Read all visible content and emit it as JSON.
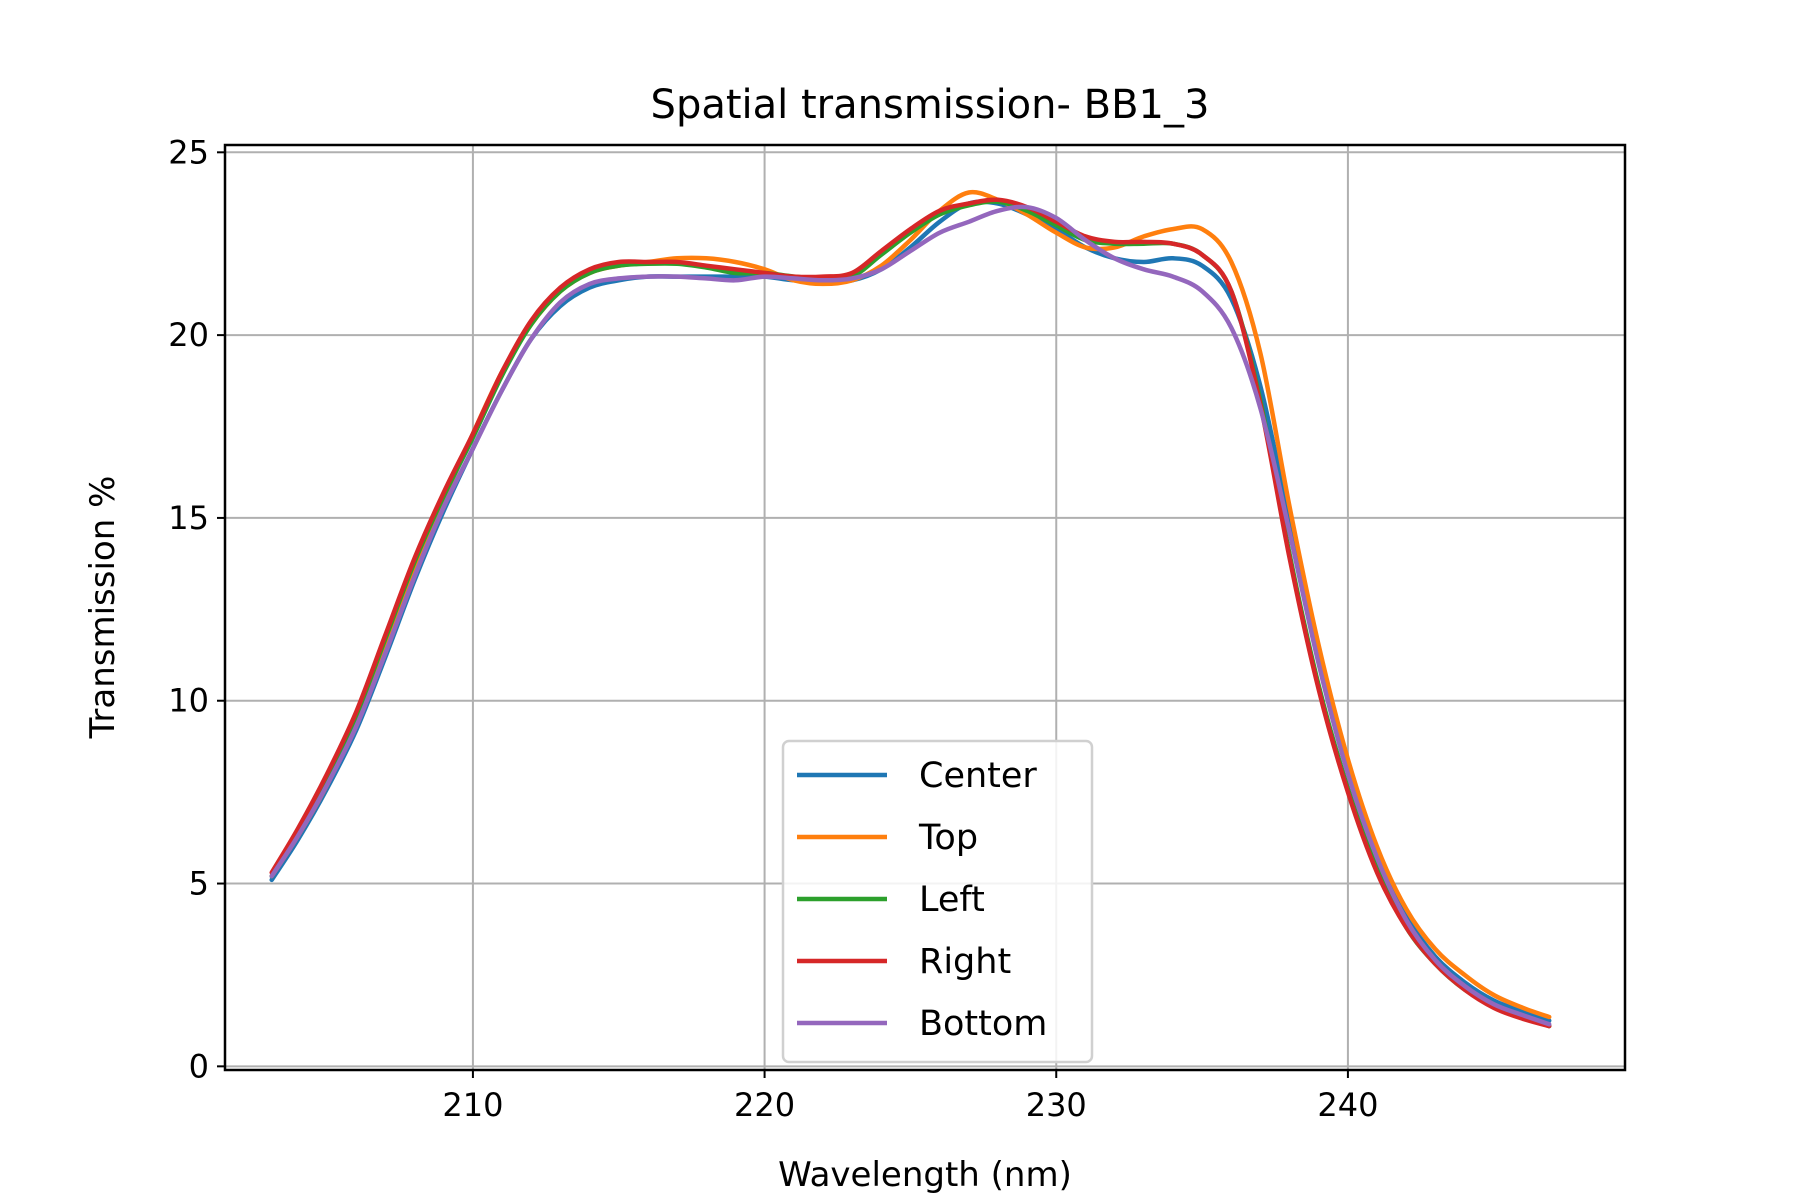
{
  "chart_data": {
    "type": "line",
    "title": "Spatial transmission- BB1_3",
    "xlabel": "Wavelength (nm)",
    "ylabel": "Transmission %",
    "xlim": [
      201.5,
      249.5
    ],
    "ylim": [
      -0.1,
      25.2
    ],
    "xticks": [
      210,
      220,
      230,
      240
    ],
    "yticks": [
      0,
      5,
      10,
      15,
      20,
      25
    ],
    "grid": true,
    "legend_position": "lower-center",
    "series": [
      {
        "name": "Center",
        "color": "#1f77b4",
        "x": [
          203.1,
          204,
          205,
          206,
          207,
          208,
          209,
          210,
          211,
          212,
          213,
          214,
          215,
          216,
          217,
          218,
          219,
          220,
          221,
          222,
          223,
          224,
          225,
          226,
          227,
          228,
          229,
          230,
          231,
          232,
          233,
          234,
          235,
          236,
          237,
          238,
          239,
          240,
          241,
          242,
          243,
          244,
          245,
          246,
          246.9
        ],
        "y": [
          5.1,
          6.2,
          7.6,
          9.2,
          11.2,
          13.3,
          15.2,
          16.9,
          18.5,
          19.9,
          20.8,
          21.3,
          21.5,
          21.6,
          21.6,
          21.6,
          21.6,
          21.6,
          21.5,
          21.5,
          21.5,
          21.8,
          22.4,
          23.1,
          23.6,
          23.6,
          23.3,
          22.9,
          22.4,
          22.1,
          22.0,
          22.1,
          21.9,
          21.0,
          18.6,
          14.9,
          11.3,
          8.2,
          5.8,
          4.1,
          3.0,
          2.3,
          1.8,
          1.5,
          1.25
        ]
      },
      {
        "name": "Top",
        "color": "#ff7f0e",
        "x": [
          203.1,
          204,
          205,
          206,
          207,
          208,
          209,
          210,
          211,
          212,
          213,
          214,
          215,
          216,
          217,
          218,
          219,
          220,
          221,
          222,
          223,
          224,
          225,
          226,
          227,
          228,
          229,
          230,
          231,
          232,
          233,
          234,
          235,
          236,
          237,
          238,
          239,
          240,
          241,
          242,
          243,
          244,
          245,
          246,
          246.9
        ],
        "y": [
          5.2,
          6.3,
          7.7,
          9.4,
          11.4,
          13.5,
          15.5,
          17.3,
          19.0,
          20.3,
          21.2,
          21.7,
          21.9,
          22.0,
          22.1,
          22.1,
          22.0,
          21.8,
          21.5,
          21.4,
          21.5,
          21.9,
          22.6,
          23.4,
          23.9,
          23.7,
          23.3,
          22.8,
          22.4,
          22.4,
          22.7,
          22.9,
          22.9,
          22.0,
          19.5,
          15.3,
          11.5,
          8.4,
          6.0,
          4.3,
          3.2,
          2.5,
          1.95,
          1.6,
          1.35
        ]
      },
      {
        "name": "Left",
        "color": "#2ca02c",
        "x": [
          203.1,
          204,
          205,
          206,
          207,
          208,
          209,
          210,
          211,
          212,
          213,
          214,
          215,
          216,
          217,
          218,
          219,
          220,
          221,
          222,
          223,
          224,
          225,
          226,
          227,
          228,
          229,
          230,
          231,
          232,
          233,
          234,
          235,
          236,
          237,
          238,
          239,
          240,
          241,
          242,
          243,
          244,
          245,
          246,
          246.9
        ],
        "y": [
          5.2,
          6.4,
          7.9,
          9.6,
          11.7,
          13.8,
          15.6,
          17.2,
          18.9,
          20.3,
          21.2,
          21.7,
          21.9,
          21.95,
          21.95,
          21.85,
          21.7,
          21.7,
          21.6,
          21.55,
          21.6,
          22.2,
          22.8,
          23.3,
          23.55,
          23.65,
          23.4,
          23.0,
          22.6,
          22.5,
          22.5,
          22.5,
          22.2,
          21.2,
          18.2,
          14.0,
          10.4,
          7.6,
          5.4,
          3.8,
          2.8,
          2.1,
          1.65,
          1.35,
          1.1
        ]
      },
      {
        "name": "Right",
        "color": "#d62728",
        "x": [
          203.1,
          204,
          205,
          206,
          207,
          208,
          209,
          210,
          211,
          212,
          213,
          214,
          215,
          216,
          217,
          218,
          219,
          220,
          221,
          222,
          223,
          224,
          225,
          226,
          227,
          228,
          229,
          230,
          231,
          232,
          233,
          234,
          235,
          236,
          237,
          238,
          239,
          240,
          241,
          242,
          243,
          244,
          245,
          246,
          246.9
        ],
        "y": [
          5.3,
          6.5,
          8.0,
          9.7,
          11.8,
          13.9,
          15.7,
          17.3,
          19.0,
          20.4,
          21.3,
          21.8,
          22.0,
          22.0,
          22.0,
          21.9,
          21.8,
          21.7,
          21.6,
          21.6,
          21.7,
          22.3,
          22.9,
          23.4,
          23.6,
          23.7,
          23.5,
          23.1,
          22.7,
          22.55,
          22.55,
          22.5,
          22.2,
          21.2,
          18.1,
          13.9,
          10.3,
          7.5,
          5.3,
          3.8,
          2.8,
          2.1,
          1.6,
          1.3,
          1.1
        ]
      },
      {
        "name": "Bottom",
        "color": "#9467bd",
        "x": [
          203.1,
          204,
          205,
          206,
          207,
          208,
          209,
          210,
          211,
          212,
          213,
          214,
          215,
          216,
          217,
          218,
          219,
          220,
          221,
          222,
          223,
          224,
          225,
          226,
          227,
          228,
          229,
          230,
          231,
          232,
          233,
          234,
          235,
          236,
          237,
          238,
          239,
          240,
          241,
          242,
          243,
          244,
          245,
          246,
          246.9
        ],
        "y": [
          5.2,
          6.3,
          7.7,
          9.3,
          11.3,
          13.4,
          15.3,
          16.9,
          18.5,
          19.9,
          20.9,
          21.4,
          21.55,
          21.6,
          21.6,
          21.55,
          21.5,
          21.6,
          21.55,
          21.5,
          21.55,
          21.8,
          22.3,
          22.8,
          23.1,
          23.4,
          23.5,
          23.2,
          22.6,
          22.1,
          21.8,
          21.6,
          21.2,
          20.2,
          18.0,
          14.6,
          11.0,
          8.0,
          5.7,
          4.0,
          2.9,
          2.2,
          1.7,
          1.4,
          1.15
        ]
      }
    ]
  }
}
